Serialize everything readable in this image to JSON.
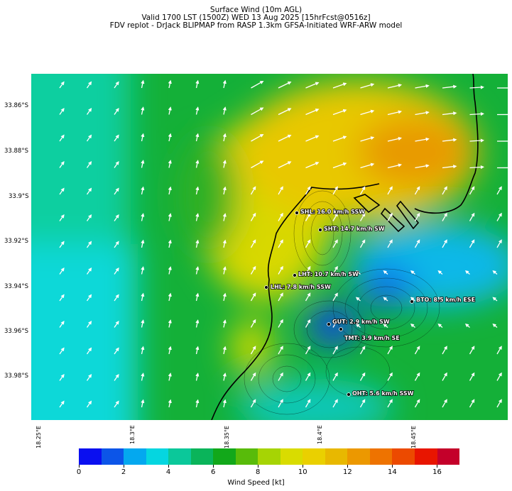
{
  "header": {
    "line1": "Surface Wind (10m AGL)",
    "line2": "Valid 1700 LST (1500Z) WED 13 Aug 2025 [15hrFcst@0516z]",
    "line3": "FDV replot - DrJack BLIPMAP from RASP 1.3km GFSA-Initiated WRF-ARW model"
  },
  "y_axis": {
    "ticks": [
      "33.86°S",
      "33.88°S",
      "33.9°S",
      "33.92°S",
      "33.94°S",
      "33.96°S",
      "33.98°S"
    ]
  },
  "x_axis": {
    "ticks": [
      "18.25°E",
      "18.3°E",
      "18.35°E",
      "18.4°E",
      "18.45°E"
    ]
  },
  "stations": [
    {
      "label": "SHL: 16.0 km/h SSW"
    },
    {
      "label": "SHT: 14.7 km/h SW"
    },
    {
      "label": "LHT: 10.7 km/h SW"
    },
    {
      "label": "LHL: 7.8 km/h SSW"
    },
    {
      "label": "BTO: 8.5 km/h ESE"
    },
    {
      "label": "GUT: 2.9 km/h SW"
    },
    {
      "label": "TMT: 3.9 km/h SE"
    },
    {
      "label": "OHT: 5.6 km/h SSW"
    }
  ],
  "colorbar": {
    "label": "Wind Speed [kt]",
    "ticks": [
      "0",
      "2",
      "4",
      "6",
      "8",
      "10",
      "12",
      "14",
      "16"
    ],
    "colors": [
      "#0a0ff0",
      "#0c55e8",
      "#04a8ef",
      "#05d6e0",
      "#0bc89a",
      "#0ab45a",
      "#12a81a",
      "#58bb0a",
      "#a6d404",
      "#d9dc00",
      "#ead000",
      "#e8b800",
      "#ec9800",
      "#ee7300",
      "#ec4a00",
      "#e81500",
      "#c4002a"
    ]
  }
}
